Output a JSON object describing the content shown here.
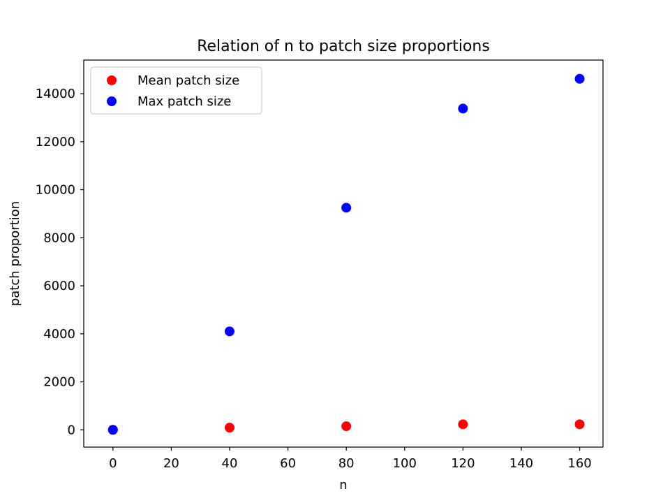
{
  "chart_data": {
    "type": "scatter",
    "title": "Relation of n to patch size proportions",
    "xlabel": "n",
    "ylabel": "patch proportion",
    "xlim": [
      -10,
      168
    ],
    "ylim": [
      -720,
      15400
    ],
    "xticks": [
      0,
      20,
      40,
      60,
      80,
      100,
      120,
      140,
      160
    ],
    "yticks": [
      0,
      2000,
      4000,
      6000,
      8000,
      10000,
      12000,
      14000
    ],
    "grid": false,
    "legend_position": "upper-left",
    "series": [
      {
        "name": "Mean patch size",
        "color": "#ff0000",
        "x": [
          0,
          40,
          80,
          120,
          160
        ],
        "y": [
          0,
          90,
          150,
          230,
          230
        ]
      },
      {
        "name": "Max patch size",
        "color": "#0000ff",
        "x": [
          0,
          40,
          80,
          120,
          160
        ],
        "y": [
          0,
          4100,
          9250,
          13380,
          14620
        ]
      }
    ]
  }
}
